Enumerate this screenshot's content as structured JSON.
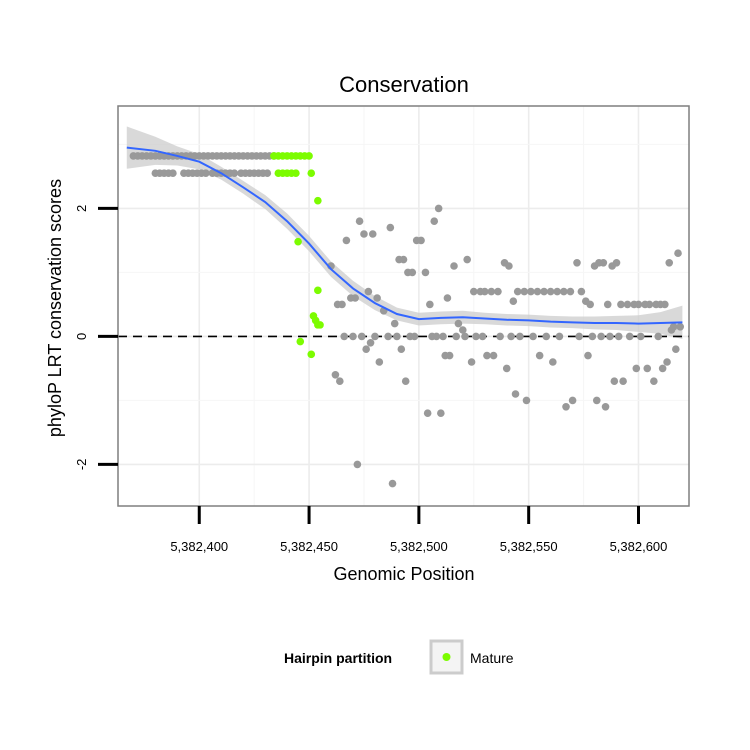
{
  "chart_data": {
    "type": "scatter",
    "title": "Conservation",
    "xlabel": "Genomic Position",
    "ylabel": "phyloP LRT conservation scores",
    "xlim": [
      5382363,
      5382623
    ],
    "ylim": [
      -2.65,
      3.6
    ],
    "x_ticks": [
      5382400,
      5382450,
      5382500,
      5382550,
      5382600
    ],
    "x_tick_labels": [
      "5,382,400",
      "5,382,450",
      "5,382,500",
      "5,382,550",
      "5,382,600"
    ],
    "y_ticks": [
      -2,
      0,
      2
    ],
    "y_tick_labels": [
      "-2",
      "0",
      "2"
    ],
    "reference_line": {
      "y": 0,
      "style": "dashed"
    },
    "legend": {
      "title": "Hairpin partition",
      "entries": [
        {
          "label": "Mature",
          "color": "#7cfc00"
        }
      ],
      "position": "bottom"
    },
    "colors": {
      "other_points": "#999999",
      "mature_points": "#7cfc00",
      "smooth_line": "#3366ff",
      "ribbon": "#cccccc"
    },
    "series": [
      {
        "name": "Other",
        "color": "#999999",
        "points": [
          [
            5382370,
            2.82
          ],
          [
            5382372,
            2.82
          ],
          [
            5382374,
            2.82
          ],
          [
            5382376,
            2.82
          ],
          [
            5382378,
            2.82
          ],
          [
            5382380,
            2.82
          ],
          [
            5382382,
            2.82
          ],
          [
            5382384,
            2.82
          ],
          [
            5382386,
            2.82
          ],
          [
            5382388,
            2.82
          ],
          [
            5382390,
            2.82
          ],
          [
            5382392,
            2.82
          ],
          [
            5382394,
            2.82
          ],
          [
            5382396,
            2.82
          ],
          [
            5382398,
            2.82
          ],
          [
            5382400,
            2.82
          ],
          [
            5382402,
            2.82
          ],
          [
            5382404,
            2.82
          ],
          [
            5382406,
            2.82
          ],
          [
            5382408,
            2.82
          ],
          [
            5382410,
            2.82
          ],
          [
            5382412,
            2.82
          ],
          [
            5382414,
            2.82
          ],
          [
            5382416,
            2.82
          ],
          [
            5382418,
            2.82
          ],
          [
            5382420,
            2.82
          ],
          [
            5382422,
            2.82
          ],
          [
            5382424,
            2.82
          ],
          [
            5382426,
            2.82
          ],
          [
            5382428,
            2.82
          ],
          [
            5382430,
            2.82
          ],
          [
            5382432,
            2.82
          ],
          [
            5382434,
            2.82
          ],
          [
            5382380,
            2.55
          ],
          [
            5382382,
            2.55
          ],
          [
            5382384,
            2.55
          ],
          [
            5382386,
            2.55
          ],
          [
            5382388,
            2.55
          ],
          [
            5382393,
            2.55
          ],
          [
            5382395,
            2.55
          ],
          [
            5382397,
            2.55
          ],
          [
            5382399,
            2.55
          ],
          [
            5382401,
            2.55
          ],
          [
            5382403,
            2.55
          ],
          [
            5382406,
            2.55
          ],
          [
            5382408,
            2.55
          ],
          [
            5382410,
            2.55
          ],
          [
            5382412,
            2.55
          ],
          [
            5382414,
            2.55
          ],
          [
            5382416,
            2.55
          ],
          [
            5382419,
            2.55
          ],
          [
            5382421,
            2.55
          ],
          [
            5382423,
            2.55
          ],
          [
            5382425,
            2.55
          ],
          [
            5382427,
            2.55
          ],
          [
            5382429,
            2.55
          ],
          [
            5382431,
            2.55
          ],
          [
            5382460,
            1.1
          ],
          [
            5382463,
            0.5
          ],
          [
            5382465,
            0.5
          ],
          [
            5382467,
            1.5
          ],
          [
            5382469,
            0.6
          ],
          [
            5382471,
            0.6
          ],
          [
            5382473,
            1.8
          ],
          [
            5382475,
            1.6
          ],
          [
            5382477,
            0.7
          ],
          [
            5382479,
            1.6
          ],
          [
            5382481,
            0.6
          ],
          [
            5382484,
            0.4
          ],
          [
            5382487,
            1.7
          ],
          [
            5382489,
            0.2
          ],
          [
            5382491,
            1.2
          ],
          [
            5382493,
            1.2
          ],
          [
            5382495,
            1.0
          ],
          [
            5382497,
            1.0
          ],
          [
            5382499,
            1.5
          ],
          [
            5382501,
            1.5
          ],
          [
            5382503,
            1.0
          ],
          [
            5382505,
            0.5
          ],
          [
            5382507,
            1.8
          ],
          [
            5382509,
            2.0
          ],
          [
            5382511,
            0.0
          ],
          [
            5382513,
            0.6
          ],
          [
            5382516,
            1.1
          ],
          [
            5382518,
            0.2
          ],
          [
            5382520,
            0.1
          ],
          [
            5382522,
            1.2
          ],
          [
            5382525,
            0.7
          ],
          [
            5382528,
            0.7
          ],
          [
            5382530,
            0.7
          ],
          [
            5382533,
            0.7
          ],
          [
            5382536,
            0.7
          ],
          [
            5382539,
            1.15
          ],
          [
            5382541,
            1.1
          ],
          [
            5382543,
            0.55
          ],
          [
            5382545,
            0.7
          ],
          [
            5382548,
            0.7
          ],
          [
            5382551,
            0.7
          ],
          [
            5382554,
            0.7
          ],
          [
            5382557,
            0.7
          ],
          [
            5382560,
            0.7
          ],
          [
            5382563,
            0.7
          ],
          [
            5382566,
            0.7
          ],
          [
            5382569,
            0.7
          ],
          [
            5382572,
            1.15
          ],
          [
            5382574,
            0.7
          ],
          [
            5382576,
            0.55
          ],
          [
            5382578,
            0.5
          ],
          [
            5382580,
            1.1
          ],
          [
            5382582,
            1.15
          ],
          [
            5382584,
            1.15
          ],
          [
            5382586,
            0.5
          ],
          [
            5382588,
            1.1
          ],
          [
            5382590,
            1.15
          ],
          [
            5382592,
            0.5
          ],
          [
            5382595,
            0.5
          ],
          [
            5382598,
            0.5
          ],
          [
            5382600,
            0.5
          ],
          [
            5382603,
            0.5
          ],
          [
            5382605,
            0.5
          ],
          [
            5382608,
            0.5
          ],
          [
            5382610,
            0.5
          ],
          [
            5382612,
            0.5
          ],
          [
            5382614,
            1.15
          ],
          [
            5382616,
            0.15
          ],
          [
            5382618,
            1.3
          ],
          [
            5382619,
            0.15
          ],
          [
            5382462,
            -0.6
          ],
          [
            5382464,
            -0.7
          ],
          [
            5382466,
            0.0
          ],
          [
            5382470,
            0.0
          ],
          [
            5382472,
            -2.0
          ],
          [
            5382474,
            0.0
          ],
          [
            5382476,
            -0.2
          ],
          [
            5382478,
            -0.1
          ],
          [
            5382480,
            0.0
          ],
          [
            5382482,
            -0.4
          ],
          [
            5382486,
            0.0
          ],
          [
            5382488,
            -2.3
          ],
          [
            5382490,
            0.0
          ],
          [
            5382492,
            -0.2
          ],
          [
            5382494,
            -0.7
          ],
          [
            5382496,
            0.0
          ],
          [
            5382498,
            0.0
          ],
          [
            5382504,
            -1.2
          ],
          [
            5382506,
            0.0
          ],
          [
            5382508,
            0.0
          ],
          [
            5382510,
            -1.2
          ],
          [
            5382512,
            -0.3
          ],
          [
            5382514,
            -0.3
          ],
          [
            5382517,
            0.0
          ],
          [
            5382521,
            0.0
          ],
          [
            5382524,
            -0.4
          ],
          [
            5382526,
            0.0
          ],
          [
            5382529,
            0.0
          ],
          [
            5382531,
            -0.3
          ],
          [
            5382534,
            -0.3
          ],
          [
            5382537,
            0.0
          ],
          [
            5382540,
            -0.5
          ],
          [
            5382542,
            0.0
          ],
          [
            5382544,
            -0.9
          ],
          [
            5382546,
            0.0
          ],
          [
            5382549,
            -1.0
          ],
          [
            5382552,
            0.0
          ],
          [
            5382555,
            -0.3
          ],
          [
            5382558,
            0.0
          ],
          [
            5382561,
            -0.4
          ],
          [
            5382564,
            0.0
          ],
          [
            5382567,
            -1.1
          ],
          [
            5382570,
            -1.0
          ],
          [
            5382573,
            0.0
          ],
          [
            5382577,
            -0.3
          ],
          [
            5382579,
            0.0
          ],
          [
            5382581,
            -1.0
          ],
          [
            5382583,
            0.0
          ],
          [
            5382585,
            -1.1
          ],
          [
            5382587,
            0.0
          ],
          [
            5382589,
            -0.7
          ],
          [
            5382591,
            0.0
          ],
          [
            5382593,
            -0.7
          ],
          [
            5382596,
            0.0
          ],
          [
            5382599,
            -0.5
          ],
          [
            5382601,
            0.0
          ],
          [
            5382604,
            -0.5
          ],
          [
            5382607,
            -0.7
          ],
          [
            5382609,
            0.0
          ],
          [
            5382611,
            -0.5
          ],
          [
            5382613,
            -0.4
          ],
          [
            5382615,
            0.1
          ],
          [
            5382617,
            -0.2
          ]
        ]
      },
      {
        "name": "Mature",
        "color": "#7cfc00",
        "points": [
          [
            5382434,
            2.82
          ],
          [
            5382436,
            2.82
          ],
          [
            5382438,
            2.82
          ],
          [
            5382440,
            2.82
          ],
          [
            5382442,
            2.82
          ],
          [
            5382444,
            2.82
          ],
          [
            5382446,
            2.82
          ],
          [
            5382448,
            2.82
          ],
          [
            5382450,
            2.82
          ],
          [
            5382436,
            2.55
          ],
          [
            5382438,
            2.55
          ],
          [
            5382440,
            2.55
          ],
          [
            5382442,
            2.55
          ],
          [
            5382444,
            2.55
          ],
          [
            5382451,
            2.55
          ],
          [
            5382454,
            2.12
          ],
          [
            5382445,
            1.48
          ],
          [
            5382454,
            0.72
          ],
          [
            5382452,
            0.32
          ],
          [
            5382453,
            0.25
          ],
          [
            5382454,
            0.18
          ],
          [
            5382455,
            0.18
          ],
          [
            5382446,
            -0.08
          ],
          [
            5382451,
            -0.28
          ]
        ]
      }
    ],
    "smooth_fit": {
      "name": "smooth",
      "color": "#3366ff",
      "x": [
        5382367,
        5382380,
        5382390,
        5382400,
        5382410,
        5382420,
        5382430,
        5382440,
        5382450,
        5382460,
        5382470,
        5382480,
        5382490,
        5382500,
        5382510,
        5382520,
        5382530,
        5382540,
        5382550,
        5382560,
        5382570,
        5382580,
        5382590,
        5382600,
        5382610,
        5382620
      ],
      "y": [
        2.95,
        2.9,
        2.82,
        2.73,
        2.55,
        2.33,
        2.1,
        1.8,
        1.45,
        1.05,
        0.75,
        0.52,
        0.35,
        0.27,
        0.29,
        0.3,
        0.28,
        0.26,
        0.25,
        0.23,
        0.22,
        0.21,
        0.21,
        0.2,
        0.21,
        0.22
      ],
      "ci_half_width": [
        0.33,
        0.22,
        0.15,
        0.12,
        0.1,
        0.1,
        0.11,
        0.12,
        0.12,
        0.12,
        0.12,
        0.11,
        0.1,
        0.1,
        0.1,
        0.1,
        0.09,
        0.09,
        0.09,
        0.09,
        0.09,
        0.1,
        0.11,
        0.13,
        0.17,
        0.26
      ]
    }
  }
}
